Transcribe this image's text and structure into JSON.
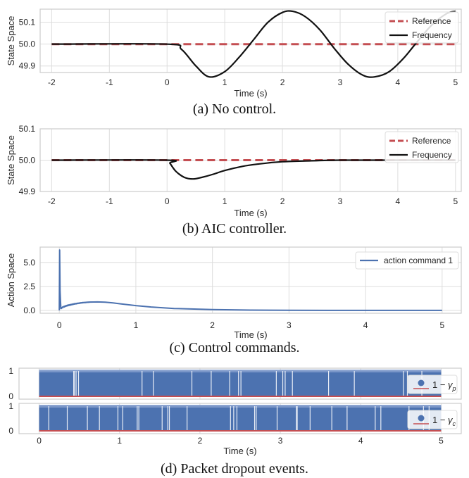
{
  "colors": {
    "reference": "#c44e52",
    "frequency": "#111111",
    "command": "#4c72b0",
    "dropout": "#4c72b0",
    "baseline": "#c44e52",
    "grid": "#dddddd",
    "frame": "#cccccc"
  },
  "chart_data": [
    {
      "type": "line",
      "caption": "(a) No control.",
      "xlabel": "Time (s)",
      "ylabel": "State Space",
      "xlim": [
        -2.2,
        5.1
      ],
      "ylim": [
        49.87,
        50.16
      ],
      "xticks": [
        -2,
        -1,
        0,
        1,
        2,
        3,
        4,
        5
      ],
      "xtick_labels": [
        "-2",
        "-1",
        "0",
        "1",
        "2",
        "3",
        "4",
        "5"
      ],
      "yticks": [
        49.9,
        50.0,
        50.1
      ],
      "ytick_labels": [
        "49.9",
        "50.0",
        "50.1"
      ],
      "grid": true,
      "legend_position": "top-right",
      "series": [
        {
          "name": "Reference",
          "style": "dashed",
          "x": [
            -2,
            5
          ],
          "y": [
            50.0,
            50.0
          ]
        },
        {
          "name": "Frequency",
          "style": "solid",
          "x": [
            -2,
            0,
            0.25,
            0.5,
            0.73,
            1.0,
            1.25,
            1.5,
            1.75,
            2.0,
            2.18,
            2.4,
            2.65,
            2.9,
            3.15,
            3.4,
            3.6,
            3.85,
            4.1,
            4.35,
            4.6,
            4.85,
            5.0
          ],
          "y": [
            50.0,
            50.0,
            49.976,
            49.9,
            49.85,
            49.874,
            49.94,
            50.02,
            50.1,
            50.145,
            50.15,
            50.125,
            50.065,
            49.98,
            49.905,
            49.857,
            49.85,
            49.874,
            49.935,
            50.015,
            50.09,
            50.14,
            50.15
          ]
        }
      ]
    },
    {
      "type": "line",
      "caption": "(b) AIC controller.",
      "xlabel": "Time (s)",
      "ylabel": "State Space",
      "xlim": [
        -2.2,
        5.1
      ],
      "ylim": [
        49.9,
        50.1
      ],
      "xticks": [
        -2,
        -1,
        0,
        1,
        2,
        3,
        4,
        5
      ],
      "xtick_labels": [
        "-2",
        "-1",
        "0",
        "1",
        "2",
        "3",
        "4",
        "5"
      ],
      "yticks": [
        49.9,
        50.0,
        50.1
      ],
      "ytick_labels": [
        "49.9",
        "50.0",
        "50.1"
      ],
      "grid": true,
      "legend_position": "top-right",
      "series": [
        {
          "name": "Reference",
          "style": "dashed",
          "x": [
            -2,
            5
          ],
          "y": [
            50.0,
            50.0
          ]
        },
        {
          "name": "Frequency",
          "style": "solid",
          "x": [
            -2,
            0,
            0.05,
            0.15,
            0.3,
            0.45,
            0.6,
            0.8,
            1.0,
            1.3,
            1.6,
            2.0,
            2.5,
            3.0,
            3.5,
            4.0,
            4.5,
            5.0
          ],
          "y": [
            50.0,
            50.0,
            49.99,
            49.965,
            49.945,
            49.94,
            49.945,
            49.955,
            49.967,
            49.98,
            49.988,
            49.995,
            49.998,
            50.0,
            50.0,
            50.0,
            50.0,
            50.0
          ]
        }
      ]
    },
    {
      "type": "line",
      "caption": "(c) Control commands.",
      "xlabel": "Time (s)",
      "ylabel": "Action Space",
      "xlim": [
        -0.25,
        5.25
      ],
      "ylim": [
        -0.3,
        6.6
      ],
      "xticks": [
        0,
        1,
        2,
        3,
        4,
        5
      ],
      "xtick_labels": [
        "0",
        "1",
        "2",
        "3",
        "4",
        "5"
      ],
      "yticks": [
        0.0,
        2.5,
        5.0
      ],
      "ytick_labels": [
        "0.0",
        "2.5",
        "5.0"
      ],
      "grid": true,
      "legend_position": "top-right",
      "series": [
        {
          "name": "action command 1",
          "style": "solid",
          "x": [
            0,
            0.005,
            0.01,
            0.02,
            0.05,
            0.1,
            0.2,
            0.3,
            0.4,
            0.5,
            0.6,
            0.7,
            0.8,
            1.0,
            1.2,
            1.5,
            2.0,
            2.5,
            3.0,
            3.5,
            4.0,
            4.5,
            5.0
          ],
          "y": [
            0.0,
            6.3,
            2.0,
            0.2,
            0.35,
            0.5,
            0.68,
            0.8,
            0.87,
            0.88,
            0.85,
            0.78,
            0.68,
            0.5,
            0.35,
            0.2,
            0.08,
            0.03,
            0.01,
            0.0,
            0.0,
            0.0,
            0.0
          ]
        }
      ]
    },
    {
      "type": "bar",
      "caption": "(d) Packet dropout events.",
      "xlabel": "Time (s)",
      "xlim": [
        -0.25,
        5.25
      ],
      "xticks": [
        0,
        1,
        2,
        3,
        4,
        5
      ],
      "xtick_labels": [
        "0",
        "1",
        "2",
        "3",
        "4",
        "5"
      ],
      "grid": true,
      "panels": [
        {
          "name": "1 − γp",
          "legend_label": "1 − ",
          "legend_symbol": "γ",
          "legend_sub": "p",
          "yticks": [
            0,
            1
          ],
          "ytick_labels": [
            "0",
            "1"
          ],
          "description": "dense dropout events over t = 0 to 5",
          "gaps": [
            0.43,
            0.44,
            0.46,
            0.49,
            1.28,
            1.42,
            1.9,
            2.14,
            2.37,
            2.48,
            2.51,
            2.95,
            3.03,
            3.06,
            3.15,
            3.6,
            3.92,
            4.53,
            4.58,
            4.76
          ]
        },
        {
          "name": "1 − γc",
          "legend_label": "1 − ",
          "legend_symbol": "γ",
          "legend_sub": "c",
          "yticks": [
            0,
            1
          ],
          "ytick_labels": [
            "0",
            "1"
          ],
          "description": "dense dropout events over t = 0 to 5",
          "gaps": [
            0.12,
            0.35,
            0.6,
            0.75,
            0.98,
            1.04,
            1.22,
            1.24,
            1.53,
            1.6,
            1.62,
            1.84,
            2.38,
            2.42,
            2.46,
            2.68,
            2.7,
            2.96,
            3.2,
            3.21,
            3.37,
            3.64,
            3.83,
            4.18,
            4.25,
            4.6,
            4.78,
            4.85
          ]
        }
      ]
    }
  ]
}
